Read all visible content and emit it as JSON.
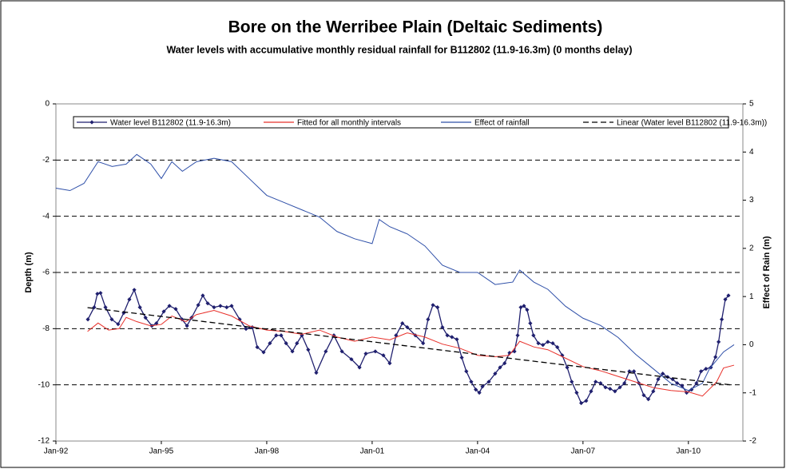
{
  "chart_data": {
    "type": "line",
    "title": "Bore on the Werribee Plain (Deltaic Sediments)",
    "subtitle": "Water levels with accumulative monthly residual rainfall for B112802 (11.9-16.3m) (0 months delay)",
    "y_label": "Depth (m)",
    "y2_label": "Effect of Rain (m)",
    "xlim": [
      1992,
      2011.55
    ],
    "xticks": [
      {
        "value": 1992,
        "label": "Jan-92"
      },
      {
        "value": 1995,
        "label": "Jan-95"
      },
      {
        "value": 1998,
        "label": "Jan-98"
      },
      {
        "value": 2001,
        "label": "Jan-01"
      },
      {
        "value": 2004,
        "label": "Jan-04"
      },
      {
        "value": 2007,
        "label": "Jan-07"
      },
      {
        "value": 2010,
        "label": "Jan-10"
      }
    ],
    "ylim": [
      -12,
      0
    ],
    "yticks": [
      -12,
      -10,
      -8,
      -6,
      -4,
      -2,
      0
    ],
    "y2lim": [
      -2,
      5
    ],
    "y2ticks": [
      -2,
      -1,
      0,
      1,
      2,
      3,
      4,
      5
    ],
    "grid": true,
    "series": [
      {
        "name": "Water level B112802 (11.9-16.3m)",
        "color": "#1f1f6e",
        "marker": "diamond",
        "x": [
          1992.91,
          1993.09,
          1993.18,
          1993.27,
          1993.41,
          1993.59,
          1993.77,
          1993.93,
          1994.09,
          1994.23,
          1994.39,
          1994.55,
          1994.73,
          1994.86,
          1995.07,
          1995.23,
          1995.41,
          1995.59,
          1995.73,
          1995.86,
          1996.05,
          1996.18,
          1996.32,
          1996.5,
          1996.68,
          1996.86,
          1997.0,
          1997.23,
          1997.41,
          1997.59,
          1997.73,
          1997.91,
          1998.09,
          1998.27,
          1998.41,
          1998.55,
          1998.73,
          1998.86,
          1999.0,
          1999.18,
          1999.41,
          1999.68,
          1999.91,
          2000.14,
          2000.41,
          2000.64,
          2000.82,
          2001.09,
          2001.32,
          2001.5,
          2001.68,
          2001.86,
          2002.0,
          2002.23,
          2002.45,
          2002.59,
          2002.73,
          2002.86,
          2003.0,
          2003.14,
          2003.27,
          2003.41,
          2003.55,
          2003.68,
          2003.82,
          2003.95,
          2004.05,
          2004.14,
          2004.32,
          2004.5,
          2004.64,
          2004.77,
          2004.91,
          2005.05,
          2005.14,
          2005.23,
          2005.32,
          2005.41,
          2005.5,
          2005.59,
          2005.73,
          2005.86,
          2006.0,
          2006.14,
          2006.27,
          2006.41,
          2006.55,
          2006.68,
          2006.82,
          2006.95,
          2007.09,
          2007.23,
          2007.36,
          2007.5,
          2007.64,
          2007.77,
          2007.91,
          2008.05,
          2008.18,
          2008.32,
          2008.45,
          2008.59,
          2008.73,
          2008.86,
          2009.0,
          2009.14,
          2009.27,
          2009.41,
          2009.55,
          2009.68,
          2009.82,
          2009.95,
          2010.09,
          2010.23,
          2010.36,
          2010.5,
          2010.64,
          2010.77,
          2010.86,
          2010.95,
          2011.05,
          2011.14
        ],
        "values": [
          -7.67,
          -7.24,
          -6.76,
          -6.73,
          -7.24,
          -7.67,
          -7.84,
          -7.44,
          -6.96,
          -6.62,
          -7.24,
          -7.61,
          -7.9,
          -7.81,
          -7.39,
          -7.19,
          -7.3,
          -7.67,
          -7.9,
          -7.61,
          -7.16,
          -6.82,
          -7.1,
          -7.24,
          -7.19,
          -7.24,
          -7.19,
          -7.67,
          -8.01,
          -7.95,
          -8.66,
          -8.84,
          -8.52,
          -8.24,
          -8.24,
          -8.52,
          -8.81,
          -8.52,
          -8.24,
          -8.75,
          -9.57,
          -8.81,
          -8.24,
          -8.81,
          -9.09,
          -9.38,
          -8.89,
          -8.81,
          -8.95,
          -9.23,
          -8.24,
          -7.81,
          -7.95,
          -8.24,
          -8.52,
          -7.67,
          -7.16,
          -7.24,
          -7.95,
          -8.24,
          -8.3,
          -8.38,
          -9.03,
          -9.52,
          -9.89,
          -10.17,
          -10.28,
          -10.06,
          -9.89,
          -9.6,
          -9.38,
          -9.23,
          -8.86,
          -8.81,
          -8.24,
          -7.24,
          -7.19,
          -7.33,
          -7.81,
          -8.24,
          -8.52,
          -8.58,
          -8.47,
          -8.52,
          -8.66,
          -8.95,
          -9.38,
          -9.89,
          -10.28,
          -10.65,
          -10.57,
          -10.23,
          -9.89,
          -9.94,
          -10.09,
          -10.14,
          -10.23,
          -10.09,
          -9.94,
          -9.52,
          -9.52,
          -9.94,
          -10.37,
          -10.51,
          -10.23,
          -9.8,
          -9.6,
          -9.72,
          -9.8,
          -9.94,
          -10.03,
          -10.28,
          -10.17,
          -9.94,
          -9.52,
          -9.43,
          -9.38,
          -9.01,
          -8.47,
          -7.67,
          -6.96,
          -6.82
        ]
      },
      {
        "name": "Fitted for all monthly intervals",
        "color": "#e8302a",
        "x": [
          1992.9,
          1993.2,
          1993.5,
          1993.8,
          1994.0,
          1994.3,
          1994.7,
          1995.0,
          1995.3,
          1995.7,
          1996.0,
          1996.5,
          1997.0,
          1997.5,
          1998.0,
          1998.5,
          1999.0,
          1999.5,
          2000.0,
          2000.5,
          2001.0,
          2001.5,
          2002.0,
          2002.5,
          2003.0,
          2003.5,
          2004.0,
          2004.5,
          2004.9,
          2005.2,
          2005.6,
          2006.0,
          2006.5,
          2007.0,
          2007.5,
          2008.0,
          2008.5,
          2009.0,
          2009.5,
          2010.0,
          2010.4,
          2010.8,
          2011.0,
          2011.3
        ],
        "values": [
          -8.1,
          -7.8,
          -8.05,
          -8.0,
          -7.6,
          -7.75,
          -7.9,
          -7.85,
          -7.55,
          -7.75,
          -7.5,
          -7.35,
          -7.55,
          -7.9,
          -8.05,
          -8.1,
          -8.2,
          -8.05,
          -8.3,
          -8.45,
          -8.3,
          -8.4,
          -8.15,
          -8.3,
          -8.55,
          -8.7,
          -8.95,
          -9.0,
          -8.95,
          -8.45,
          -8.65,
          -8.75,
          -9.05,
          -9.35,
          -9.5,
          -9.7,
          -9.9,
          -10.1,
          -10.2,
          -10.25,
          -10.4,
          -9.9,
          -9.4,
          -9.3
        ]
      },
      {
        "name": "Effect of rainfall",
        "color": "#2e4fa8",
        "axis": "y2",
        "x": [
          1992.0,
          1992.4,
          1992.8,
          1993.2,
          1993.6,
          1994.0,
          1994.3,
          1994.7,
          1995.0,
          1995.3,
          1995.6,
          1996.0,
          1996.5,
          1997.0,
          1997.5,
          1998.0,
          1998.5,
          1999.0,
          1999.5,
          2000.0,
          2000.5,
          2001.0,
          2001.2,
          2001.5,
          2002.0,
          2002.5,
          2003.0,
          2003.5,
          2004.0,
          2004.5,
          2005.0,
          2005.2,
          2005.6,
          2006.0,
          2006.5,
          2007.0,
          2007.5,
          2008.0,
          2008.5,
          2009.0,
          2009.5,
          2010.0,
          2010.4,
          2010.6,
          2011.0,
          2011.3
        ],
        "values": [
          3.25,
          3.2,
          3.35,
          3.8,
          3.7,
          3.75,
          3.95,
          3.75,
          3.45,
          3.8,
          3.6,
          3.8,
          3.87,
          3.8,
          3.45,
          3.1,
          2.95,
          2.8,
          2.65,
          2.35,
          2.2,
          2.1,
          2.6,
          2.45,
          2.3,
          2.05,
          1.65,
          1.5,
          1.5,
          1.25,
          1.3,
          1.55,
          1.3,
          1.15,
          0.8,
          0.55,
          0.4,
          0.15,
          -0.2,
          -0.5,
          -0.8,
          -0.95,
          -0.8,
          -0.5,
          -0.15,
          0.0
        ]
      },
      {
        "name": "Linear (Water level B112802 (11.9-16.3m))",
        "color": "#000000",
        "dash": true,
        "x": [
          1992.9,
          2011.2
        ],
        "values": [
          -7.25,
          -10.0
        ]
      }
    ]
  }
}
